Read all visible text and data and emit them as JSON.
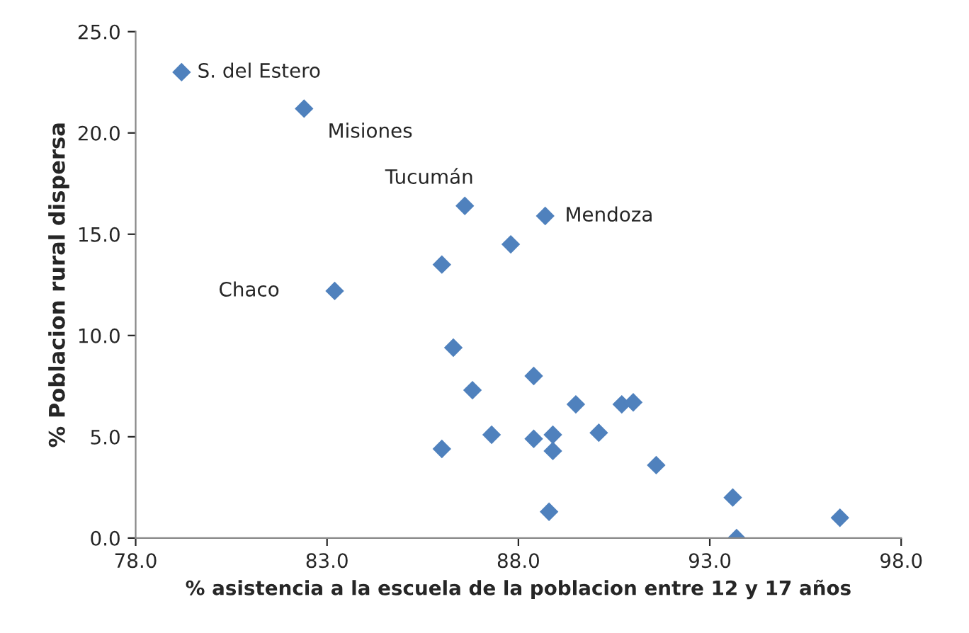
{
  "chart_data": {
    "type": "scatter",
    "xlabel": "% asistencia a la escuela de la poblacion entre 12 y 17 años",
    "ylabel": "% Poblacion rural dispersa",
    "x": [
      79.2,
      82.4,
      86.6,
      88.7,
      87.8,
      86.0,
      83.2,
      86.3,
      86.8,
      88.4,
      89.5,
      90.7,
      91.0,
      90.1,
      87.3,
      88.4,
      88.9,
      88.9,
      86.0,
      91.6,
      88.8,
      93.6,
      93.7,
      96.4
    ],
    "series": [
      {
        "color": "#4f81bd",
        "values": [
          23.0,
          21.2,
          16.4,
          15.9,
          14.5,
          13.5,
          12.2,
          9.4,
          7.3,
          8.0,
          6.6,
          6.6,
          6.7,
          5.2,
          5.1,
          4.9,
          5.1,
          4.3,
          4.4,
          3.6,
          1.3,
          2.0,
          0.0,
          1.0
        ]
      }
    ],
    "marker": "diamond",
    "grid": false,
    "xlim": [
      78,
      98
    ],
    "ylim": [
      0,
      25
    ],
    "xticks": [
      {
        "value": 78,
        "label": "78.0"
      },
      {
        "value": 83,
        "label": "83.0"
      },
      {
        "value": 88,
        "label": "88.0"
      },
      {
        "value": 93,
        "label": "93.0"
      },
      {
        "value": 98,
        "label": "98.0"
      }
    ],
    "yticks": [
      {
        "value": 0,
        "label": "0.0"
      },
      {
        "value": 5,
        "label": "5.0"
      },
      {
        "value": 10,
        "label": "10.0"
      },
      {
        "value": 15,
        "label": "15.0"
      },
      {
        "value": 20,
        "label": "20.0"
      },
      {
        "value": 25,
        "label": "25.0"
      }
    ],
    "annotations": [
      {
        "text": "S. del Estero",
        "x": 79.2,
        "y": 23.0
      },
      {
        "text": "Misiones",
        "x": 82.4,
        "y": 21.2
      },
      {
        "text": "Tucumán",
        "x": 86.6,
        "y": 16.4
      },
      {
        "text": "Mendoza",
        "x": 88.7,
        "y": 15.9
      },
      {
        "text": "Chaco",
        "x": 83.2,
        "y": 12.2
      }
    ]
  }
}
